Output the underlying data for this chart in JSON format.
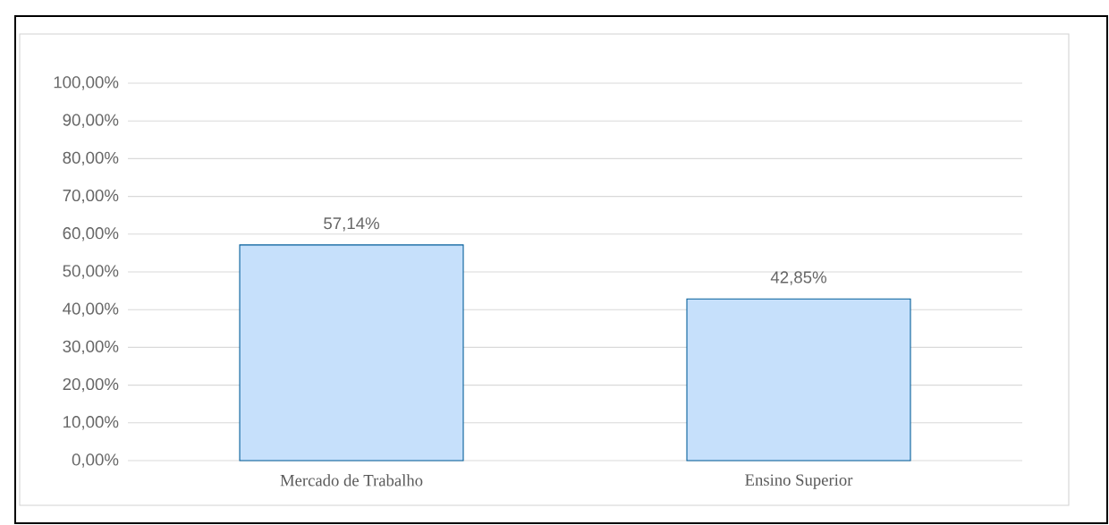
{
  "chart_data": {
    "type": "bar",
    "categories": [
      "Mercado de Trabalho",
      "Ensino Superior"
    ],
    "values": [
      57.14,
      42.85
    ],
    "value_labels": [
      "57,14%",
      "42,85%"
    ],
    "color": "#c6e0fb",
    "ylim": [
      0,
      100
    ],
    "yticks": [
      {
        "value": 0,
        "label": "0,00%"
      },
      {
        "value": 10,
        "label": "10,00%"
      },
      {
        "value": 20,
        "label": "20,00%"
      },
      {
        "value": 30,
        "label": "30,00%"
      },
      {
        "value": 40,
        "label": "40,00%"
      },
      {
        "value": 50,
        "label": "50,00%"
      },
      {
        "value": 60,
        "label": "60,00%"
      },
      {
        "value": 70,
        "label": "70,00%"
      },
      {
        "value": 80,
        "label": "80,00%"
      },
      {
        "value": 90,
        "label": "90,00%"
      },
      {
        "value": 100,
        "label": "100,00%"
      }
    ],
    "grid": "y"
  }
}
